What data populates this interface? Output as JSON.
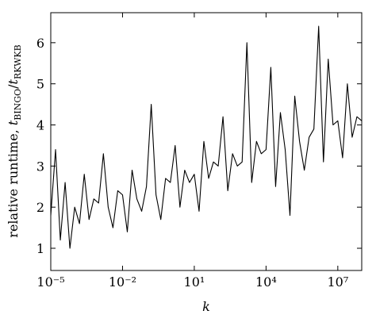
{
  "chart_data": {
    "type": "line",
    "xlabel": "k",
    "ylabel": [
      "relative runtime, ",
      "t",
      "BINGO",
      "/",
      "t",
      "RKWKB"
    ],
    "log_x": true,
    "xlim": [
      1e-05,
      100000000.0
    ],
    "ylim": [
      0.46,
      6.73
    ],
    "xticks": [
      {
        "value": 1e-05,
        "label": "10⁻⁵"
      },
      {
        "value": 0.01,
        "label": "10⁻²"
      },
      {
        "value": 10,
        "label": "10¹"
      },
      {
        "value": 10000.0,
        "label": "10⁴"
      },
      {
        "value": 10000000.0,
        "label": "10⁷"
      }
    ],
    "yticks": [
      1,
      2,
      3,
      4,
      5,
      6
    ],
    "series": [
      {
        "color": "#000000",
        "x": [
          1e-05,
          1.585e-05,
          2.512e-05,
          3.981e-05,
          6.31e-05,
          0.0001,
          0.0001585,
          0.0002512,
          0.0003981,
          0.000631,
          0.001,
          0.001585,
          0.002512,
          0.003981,
          0.00631,
          0.01,
          0.01585,
          0.02512,
          0.03981,
          0.0631,
          0.1,
          0.1585,
          0.2512,
          0.3981,
          0.631,
          1,
          1.585,
          2.512,
          3.981,
          6.31,
          10,
          15.85,
          25.12,
          39.81,
          63.1,
          100,
          158.5,
          251.2,
          398.1,
          631,
          1000,
          1585,
          2512,
          3981,
          6310,
          10000.0,
          15850.0,
          25120.0,
          39810.0,
          63100.0,
          100000.0,
          158500.0,
          251200.0,
          398100.0,
          631000.0,
          1000000.0,
          1585000.0,
          2512000.0,
          3981000.0,
          6310000.0,
          10000000.0,
          15850000.0,
          25120000.0,
          39810000.0,
          63100000.0,
          100000000.0
        ],
        "values": [
          1.8,
          3.4,
          1.2,
          2.6,
          1.0,
          2.0,
          1.6,
          2.8,
          1.7,
          2.2,
          2.1,
          3.3,
          2.0,
          1.5,
          2.4,
          2.3,
          1.4,
          2.9,
          2.2,
          1.9,
          2.5,
          4.5,
          2.3,
          1.7,
          2.7,
          2.6,
          3.5,
          2.0,
          2.9,
          2.6,
          2.8,
          1.9,
          3.6,
          2.7,
          3.1,
          3.0,
          4.2,
          2.4,
          3.3,
          3.0,
          3.1,
          6.0,
          2.6,
          3.6,
          3.3,
          3.4,
          5.4,
          2.5,
          4.3,
          3.4,
          1.8,
          4.7,
          3.6,
          2.9,
          3.7,
          3.9,
          6.4,
          3.1,
          5.6,
          4.0,
          4.1,
          3.2,
          5.0,
          3.7,
          4.2,
          4.1
        ]
      }
    ]
  }
}
